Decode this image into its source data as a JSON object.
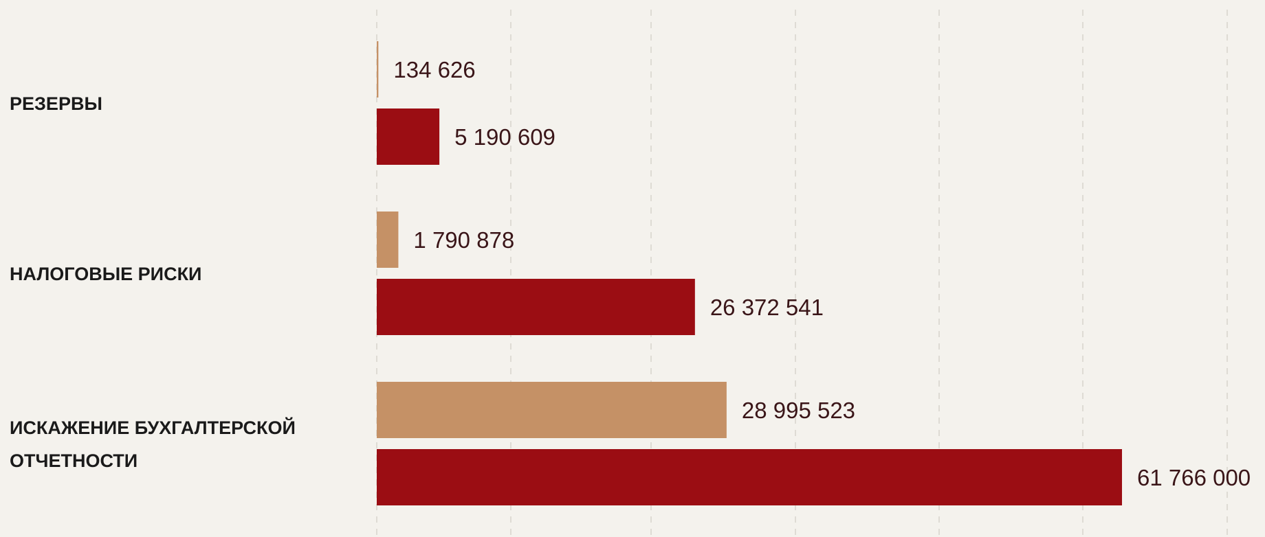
{
  "chart_data": {
    "type": "bar",
    "orientation": "horizontal",
    "categories": [
      [
        "РЕЗЕРВЫ"
      ],
      [
        "НАЛОГОВЫЕ РИСКИ"
      ],
      [
        "ИСКАЖЕНИЕ БУХГАЛТЕРСКОЙ",
        "ОТЧЕТНОСТИ"
      ]
    ],
    "series": [
      {
        "color": "#c59166",
        "values": [
          134626,
          1790878,
          28995523
        ],
        "labels": [
          "134 626",
          "1 790 878",
          "28 995 523"
        ]
      },
      {
        "color": "#9b0d13",
        "values": [
          5190609,
          26372541,
          61766000
        ],
        "labels": [
          "5 190 609",
          "26 372 541",
          "61 766 000"
        ]
      }
    ],
    "xlim": [
      0,
      70000000
    ],
    "grid": true,
    "title": "",
    "xlabel": "",
    "ylabel": "",
    "legend": "none"
  }
}
